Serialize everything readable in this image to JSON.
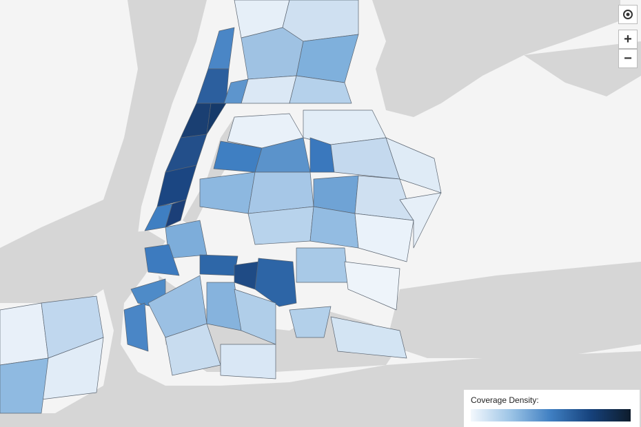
{
  "controls": {
    "zoom_in": "+",
    "zoom_out": "−"
  },
  "legend": {
    "title": "Coverage Density:"
  }
}
